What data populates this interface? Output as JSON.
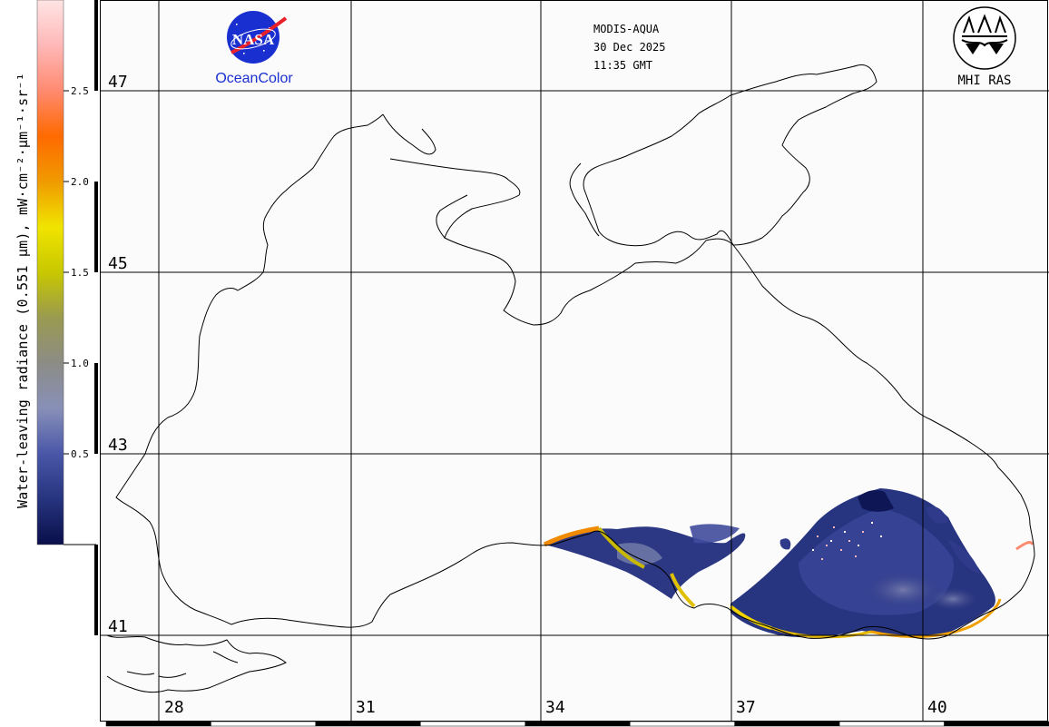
{
  "header": {
    "sensor": "MODIS-AQUA",
    "date": "30 Dec 2025",
    "time": "11:35 GMT"
  },
  "logos": {
    "nasa_text": "NASA",
    "oceancolor_text": "OceanColor",
    "mhi_text": "MHI RAS"
  },
  "legend": {
    "title": "Water-leaving radiance (0.551 μm), mW·cm⁻²·μm⁻¹·sr⁻¹",
    "ticks": [
      "0.5",
      "1.0",
      "1.5",
      "2.0",
      "2.5"
    ],
    "tick_values": [
      0.5,
      1.0,
      1.5,
      2.0,
      2.5
    ],
    "min": 0,
    "max": 3.0,
    "colors": [
      "#0a0f4a",
      "#26337e",
      "#4a57a8",
      "#8890b8",
      "#8c8c86",
      "#9a9a50",
      "#c8c800",
      "#f0e400",
      "#f09a00",
      "#ff6a00",
      "#ff8a70",
      "#ffb8b8",
      "#ffe4e4"
    ]
  },
  "latitude_labels": [
    "47",
    "45",
    "43",
    "41"
  ],
  "longitude_labels": [
    "28",
    "31",
    "34",
    "37",
    "40"
  ],
  "map": {
    "land_color": "#fbfbfb",
    "coast_color": "#000000",
    "grid_color": "#000000"
  }
}
